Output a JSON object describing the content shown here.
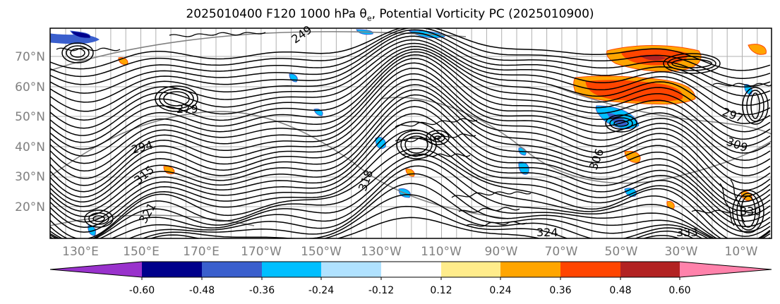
{
  "title": "2025010400 F120 1000 hPa θe, Potential Vorticity PC (2025010900)",
  "lat_labels": [
    "70°N",
    "60°N",
    "50°N",
    "40°N",
    "30°N",
    "20°N"
  ],
  "lon_labels": [
    "130°E",
    "150°E",
    "170°E",
    "170°W",
    "150°W",
    "130°W",
    "110°W",
    "90°W",
    "70°W",
    "50°W",
    "30°W",
    "10°W"
  ],
  "contour_labels": [
    "249",
    "279",
    "294",
    "318",
    "306",
    "297",
    "309",
    "315",
    "321",
    "324",
    "330",
    "333"
  ],
  "colorbar": {
    "tick_labels": [
      "-0.60",
      "-0.48",
      "-0.36",
      "-0.24",
      "-0.12",
      "0.12",
      "0.24",
      "0.36",
      "0.48",
      "0.60"
    ],
    "colors": [
      "#9932cc",
      "#00008b",
      "#3a5fcd",
      "#00bfff",
      "#b0e2ff",
      "#ffffff",
      "#ffec8b",
      "#ffa500",
      "#ff4500",
      "#b22222",
      "#ff82ab"
    ]
  }
}
